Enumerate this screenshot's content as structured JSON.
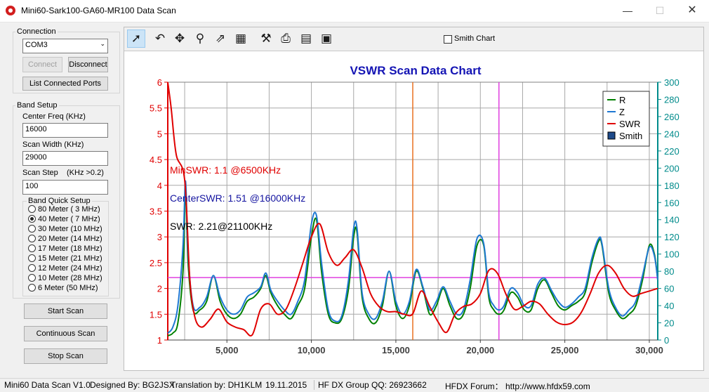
{
  "window": {
    "title": "Mini60-Sark100-GA60-MR100 Data Scan",
    "min_glyph": "—",
    "max_glyph": "☐",
    "close_glyph": "✕"
  },
  "connection": {
    "group_label": "Connection",
    "port_value": "COM3",
    "connect_label": "Connect",
    "disconnect_label": "Disconnect",
    "list_ports_label": "List Connected Ports"
  },
  "band_setup": {
    "group_label": "Band Setup",
    "center_freq_label": "Center Freq  (KHz)",
    "center_freq_value": "16000",
    "scan_width_label": "Scan Width   (KHz)",
    "scan_width_value": "29000",
    "scan_step_label": "Scan Step",
    "scan_step_hint": "(KHz >0.2)",
    "scan_step_value": "100",
    "quick_label": "Band Quick Setup",
    "bands": [
      {
        "label": "80 Meter (  3 MHz)",
        "checked": false
      },
      {
        "label": "40 Meter (  7 MHz)",
        "checked": true
      },
      {
        "label": "30 Meter (10 MHz)",
        "checked": false
      },
      {
        "label": "20 Meter (14 MHz)",
        "checked": false
      },
      {
        "label": "17 Meter (18 MHz)",
        "checked": false
      },
      {
        "label": "15 Meter (21 MHz)",
        "checked": false
      },
      {
        "label": "12 Meter (24 MHz)",
        "checked": false
      },
      {
        "label": "10 Meter (28 MHz)",
        "checked": false
      },
      {
        "label": "6 Meter  (50 MHz)",
        "checked": false
      }
    ]
  },
  "buttons": {
    "start_scan": "Start Scan",
    "continuous_scan": "Continuous Scan",
    "stop_scan": "Stop Scan"
  },
  "toolbar": {
    "tools": [
      {
        "name": "pointer-icon",
        "glyph": "➚"
      },
      {
        "name": "undo-icon",
        "glyph": "↶"
      },
      {
        "name": "pan-icon",
        "glyph": "✥"
      },
      {
        "name": "zoom-icon",
        "glyph": "⚲"
      },
      {
        "name": "export-icon",
        "glyph": "⇗"
      },
      {
        "name": "grid-icon",
        "glyph": "▦"
      },
      {
        "name": "settings-icon",
        "glyph": "⚒"
      },
      {
        "name": "print-icon",
        "glyph": "⎙"
      },
      {
        "name": "preview-icon",
        "glyph": "▤"
      },
      {
        "name": "save-icon",
        "glyph": "▣"
      }
    ],
    "smith_chart_label": "Smith Chart"
  },
  "colors": {
    "swr": "#e00000",
    "r": "#008000",
    "z": "#1e78d2",
    "left_axis": "#e00000",
    "right_axis": "#008b8b",
    "title": "#1414b4",
    "marker_center": "#e87020",
    "marker_swr": "#e040e0",
    "hline": "#e040e0"
  },
  "chart_data": {
    "type": "line",
    "title": "VSWR Scan Data Chart",
    "xlim": [
      1500,
      30500
    ],
    "ylim_left": [
      1,
      6
    ],
    "ylim_right": [
      0,
      300
    ],
    "xticks": [
      "5,000",
      "10,000",
      "15,000",
      "20,000",
      "25,000",
      "30,000"
    ],
    "yticks_left": [
      "1",
      "1.5",
      "2",
      "2.5",
      "3",
      "3.5",
      "4",
      "4.5",
      "5",
      "5.5",
      "6"
    ],
    "yticks_right": [
      "0",
      "20",
      "40",
      "60",
      "80",
      "100",
      "120",
      "140",
      "160",
      "180",
      "200",
      "220",
      "240",
      "260",
      "280",
      "300"
    ],
    "grid": true,
    "legend_position": "top-right",
    "legend": [
      "R",
      "Z",
      "SWR",
      "Smith"
    ],
    "annotations": {
      "min_swr": "MinSWR: 1.1 @6500KHz",
      "center_swr": "CenterSWR: 1.51 @16000KHz",
      "swr": "SWR: 2.21@21100KHz"
    },
    "markers": {
      "center_freq": 16000,
      "swr_freq": 21100,
      "swr_level": 2.21
    },
    "series": [
      {
        "name": "SWR",
        "axis": "left",
        "x": [
          1500,
          1700,
          2000,
          2500,
          2800,
          3100,
          3500,
          4000,
          4500,
          5000,
          5500,
          6000,
          6500,
          7000,
          7500,
          8000,
          8500,
          9000,
          9500,
          10000,
          10500,
          11000,
          11500,
          12000,
          12500,
          13000,
          13500,
          14000,
          14500,
          15000,
          15500,
          16000,
          16500,
          17000,
          17500,
          18000,
          18500,
          19000,
          19500,
          20000,
          20500,
          21000,
          21500,
          22000,
          22500,
          23000,
          23500,
          24000,
          24500,
          25000,
          25500,
          26000,
          26500,
          27000,
          27500,
          28000,
          28500,
          29000,
          29500,
          30000,
          30500
        ],
        "y": [
          6.0,
          5.5,
          4.6,
          4.1,
          2.2,
          1.45,
          1.25,
          1.4,
          1.6,
          1.35,
          1.25,
          1.2,
          1.1,
          1.6,
          1.7,
          1.5,
          1.6,
          2.0,
          2.5,
          3.0,
          3.25,
          2.7,
          2.45,
          2.6,
          2.75,
          2.4,
          1.9,
          1.65,
          1.55,
          1.55,
          1.5,
          1.51,
          1.95,
          1.65,
          1.35,
          1.15,
          1.5,
          1.65,
          1.7,
          1.9,
          2.35,
          2.3,
          1.9,
          1.6,
          1.65,
          1.75,
          1.7,
          1.5,
          1.35,
          1.3,
          1.35,
          1.55,
          1.9,
          2.3,
          2.45,
          2.3,
          2.0,
          1.85,
          1.9,
          1.95,
          2.0
        ]
      },
      {
        "name": "R",
        "axis": "right",
        "x": [
          1500,
          1800,
          2100,
          2400,
          2550,
          2700,
          3000,
          3400,
          3800,
          4200,
          4600,
          5000,
          5400,
          5800,
          6200,
          6600,
          7000,
          7300,
          7600,
          8000,
          8400,
          8800,
          9200,
          9600,
          10000,
          10300,
          10600,
          11000,
          11400,
          11800,
          12200,
          12500,
          12700,
          13000,
          13400,
          13800,
          14200,
          14600,
          15000,
          15400,
          15800,
          16200,
          16600,
          17000,
          17400,
          17800,
          18200,
          18600,
          19000,
          19400,
          19800,
          20200,
          20500,
          20800,
          21100,
          21400,
          21800,
          22200,
          22600,
          23000,
          23400,
          23800,
          24200,
          24600,
          25000,
          25400,
          25800,
          26200,
          26600,
          27000,
          27200,
          27600,
          28000,
          28400,
          28800,
          29200,
          29600,
          30000,
          30300,
          30500
        ],
        "y": [
          5,
          8,
          20,
          80,
          175,
          90,
          35,
          35,
          45,
          75,
          45,
          30,
          25,
          30,
          45,
          50,
          60,
          75,
          55,
          40,
          30,
          25,
          40,
          60,
          120,
          140,
          80,
          30,
          20,
          25,
          60,
          120,
          125,
          50,
          25,
          20,
          40,
          80,
          40,
          25,
          40,
          80,
          60,
          30,
          40,
          60,
          40,
          25,
          30,
          60,
          110,
          110,
          50,
          35,
          30,
          35,
          55,
          50,
          35,
          35,
          60,
          70,
          55,
          40,
          35,
          40,
          45,
          55,
          90,
          115,
          110,
          55,
          35,
          25,
          30,
          40,
          70,
          110,
          100,
          70
        ]
      },
      {
        "name": "Z",
        "axis": "right",
        "x": [
          1500,
          1800,
          2100,
          2400,
          2550,
          2700,
          3000,
          3400,
          3800,
          4200,
          4600,
          5000,
          5400,
          5800,
          6200,
          6600,
          7000,
          7300,
          7600,
          8000,
          8400,
          8800,
          9200,
          9600,
          10000,
          10300,
          10600,
          11000,
          11400,
          11800,
          12200,
          12500,
          12700,
          13000,
          13400,
          13800,
          14200,
          14600,
          15000,
          15400,
          15800,
          16200,
          16600,
          17000,
          17400,
          17800,
          18200,
          18600,
          19000,
          19400,
          19800,
          20200,
          20500,
          20800,
          21100,
          21400,
          21800,
          22200,
          22600,
          23000,
          23400,
          23800,
          24200,
          24600,
          25000,
          25400,
          25800,
          26200,
          26600,
          27000,
          27200,
          27600,
          28000,
          28400,
          28800,
          29200,
          29600,
          30000,
          30300,
          30500
        ],
        "y": [
          8,
          15,
          40,
          110,
          185,
          100,
          40,
          38,
          50,
          75,
          50,
          35,
          30,
          35,
          50,
          55,
          62,
          78,
          58,
          45,
          35,
          30,
          45,
          70,
          135,
          145,
          90,
          35,
          22,
          28,
          70,
          130,
          130,
          55,
          30,
          25,
          45,
          80,
          45,
          30,
          45,
          82,
          62,
          35,
          45,
          62,
          45,
          30,
          35,
          70,
          118,
          112,
          55,
          40,
          35,
          40,
          60,
          55,
          40,
          40,
          65,
          72,
          58,
          45,
          38,
          42,
          50,
          60,
          95,
          118,
          112,
          60,
          38,
          28,
          35,
          45,
          75,
          108,
          98,
          70
        ]
      }
    ]
  },
  "status": {
    "version": "Mini60 Data Scan V1.0",
    "designer": "Designed By: BG2JSX",
    "translator": "Translation by: DH1KLM",
    "date": "19.11.2015",
    "group": "HF DX Group QQ: 26923662",
    "forum": "HFDX Forum：  http://www.hfdx59.com"
  }
}
